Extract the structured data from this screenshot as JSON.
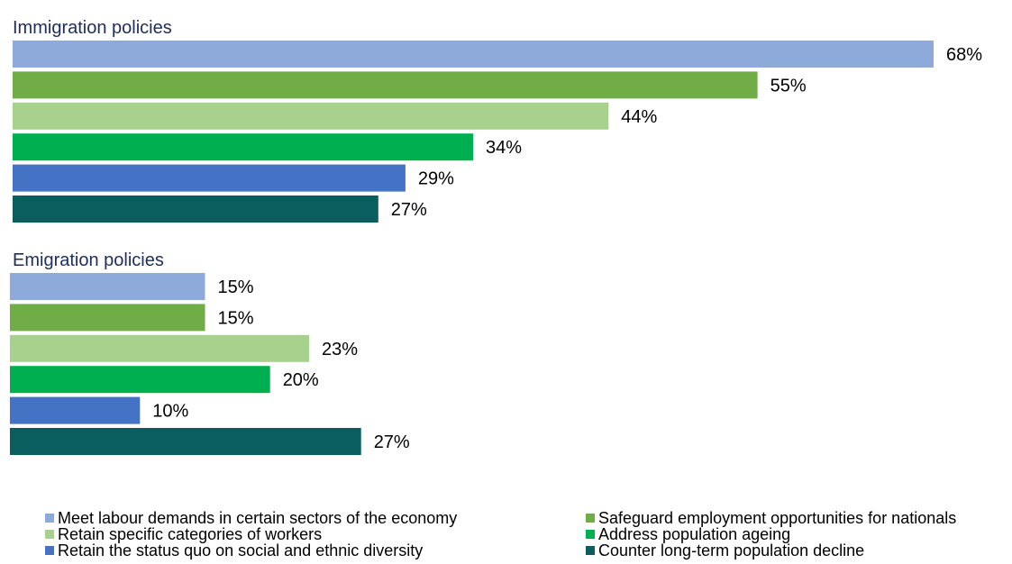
{
  "chart_data": {
    "type": "bar",
    "orientation": "horizontal",
    "unit": "%",
    "grid": false,
    "legend_placement": "bottom",
    "categories": [
      "Meet labour demands in certain sectors of the economy",
      "Safeguard employment opportunities for nationals",
      "Retain specific categories of workers",
      "Address population ageing",
      "Retain the status quo on social and ethnic diversity",
      "Counter long-term population decline"
    ],
    "colors": [
      "#8eaadb",
      "#70ad47",
      "#a9d18e",
      "#00b050",
      "#4472c4",
      "#0b5e5e"
    ],
    "panels": [
      {
        "title": "Immigration policies",
        "values": [
          68,
          55,
          44,
          34,
          29,
          27
        ],
        "labels": [
          "68%",
          "55%",
          "44%",
          "34%",
          "29%",
          "27%"
        ]
      },
      {
        "title": "Emigration policies",
        "values": [
          15,
          15,
          23,
          20,
          10,
          27
        ],
        "labels": [
          "15%",
          "15%",
          "23%",
          "20%",
          "10%",
          "27%"
        ]
      }
    ]
  }
}
